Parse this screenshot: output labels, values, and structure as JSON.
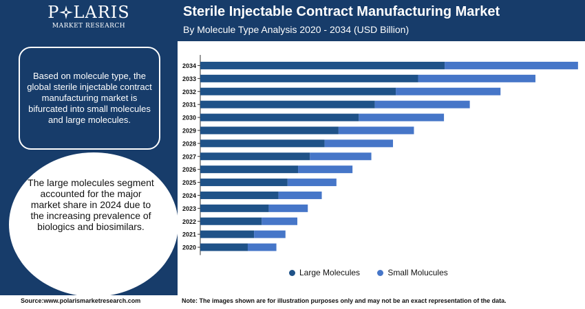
{
  "logo": {
    "name_left": "P",
    "name_right": "LARIS",
    "subtitle": "MARKET RESEARCH"
  },
  "header": {
    "title": "Sterile Injectable Contract Manufacturing Market",
    "subtitle": "By Molecule Type Analysis 2020 - 2034 (USD Billion)"
  },
  "sidebar": {
    "info_text": "Based on molecule type, the global sterile injectable contract manufacturing market is bifurcated into small molecules and large molecules.",
    "highlight_text": "The large molecules segment accounted for the major market share in 2024 due to the increasing prevalence of biologics and biosimilars."
  },
  "footer": {
    "source": "Source:www.polarismarketresearch.com",
    "note": "Note: The images shown are for illustration purposes only and may not be an exact representation of the data."
  },
  "colors": {
    "navy": "#173c6a",
    "large_molecules": "#1f5288",
    "small_molecules": "#4676c8"
  },
  "chart_data": {
    "type": "bar",
    "orientation": "horizontal",
    "stacked": true,
    "categories": [
      "2034",
      "2033",
      "2032",
      "2031",
      "2030",
      "2029",
      "2028",
      "2027",
      "2026",
      "2025",
      "2024",
      "2023",
      "2022",
      "2021",
      "2020"
    ],
    "series": [
      {
        "name": "Large Molecules",
        "color": "#1f5288",
        "values": [
          35.0,
          31.2,
          28.0,
          25.0,
          22.7,
          19.8,
          17.8,
          15.7,
          14.0,
          12.5,
          11.2,
          9.8,
          8.8,
          7.7,
          6.8
        ]
      },
      {
        "name": "Small Molucules",
        "color": "#4676c8",
        "values": [
          19.1,
          16.8,
          15.0,
          13.6,
          12.2,
          10.8,
          9.8,
          8.8,
          7.8,
          7.0,
          6.2,
          5.6,
          5.1,
          4.5,
          4.1
        ]
      }
    ],
    "xlabel": "",
    "ylabel": "",
    "xlim": [
      0,
      55
    ],
    "grid": false,
    "legend_position": "bottom"
  }
}
